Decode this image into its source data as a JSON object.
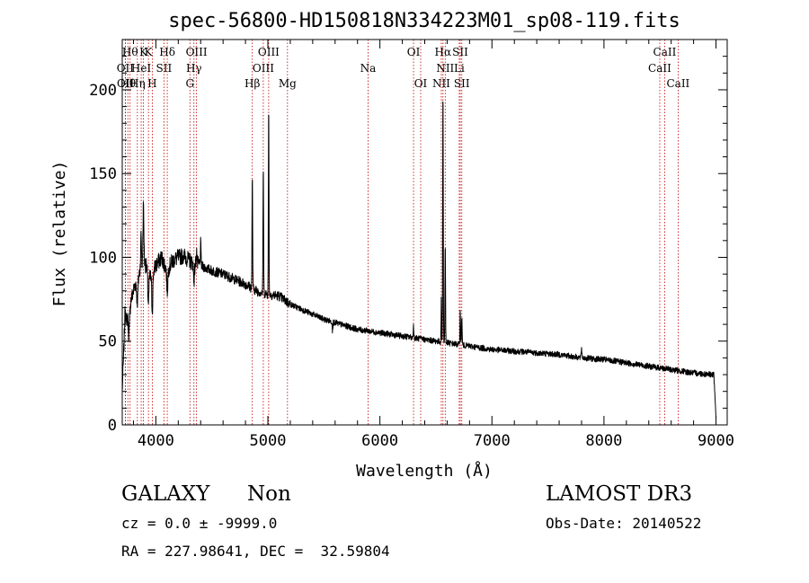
{
  "chart_data": {
    "type": "line",
    "title": "spec-56800-HD150818N334223M01_sp08-119.fits",
    "xlabel": "Wavelength (Å)",
    "ylabel": "Flux (relative)",
    "xlim": [
      3700,
      9100
    ],
    "ylim": [
      0,
      230
    ],
    "xticks": [
      4000,
      5000,
      6000,
      7000,
      8000,
      9000
    ],
    "yticks": [
      0,
      50,
      100,
      150,
      200
    ],
    "grid": false,
    "series": [
      {
        "name": "spectrum",
        "continuum": [
          [
            3700,
            20
          ],
          [
            3720,
            55
          ],
          [
            3745,
            65
          ],
          [
            3780,
            75
          ],
          [
            3820,
            85
          ],
          [
            3860,
            92
          ],
          [
            3900,
            97
          ],
          [
            3950,
            88
          ],
          [
            4000,
            95
          ],
          [
            4050,
            100
          ],
          [
            4100,
            92
          ],
          [
            4150,
            98
          ],
          [
            4200,
            100
          ],
          [
            4250,
            101
          ],
          [
            4300,
            98
          ],
          [
            4400,
            95
          ],
          [
            4500,
            92
          ],
          [
            4600,
            90
          ],
          [
            4700,
            87
          ],
          [
            4800,
            84
          ],
          [
            4900,
            80
          ],
          [
            5000,
            78
          ],
          [
            5100,
            77
          ],
          [
            5200,
            72
          ],
          [
            5300,
            69
          ],
          [
            5400,
            66
          ],
          [
            5500,
            63
          ],
          [
            5600,
            61
          ],
          [
            5700,
            59
          ],
          [
            5800,
            57
          ],
          [
            5900,
            56
          ],
          [
            6000,
            55
          ],
          [
            6100,
            54
          ],
          [
            6200,
            53
          ],
          [
            6300,
            52
          ],
          [
            6400,
            51
          ],
          [
            6500,
            50
          ],
          [
            6600,
            49
          ],
          [
            6700,
            48
          ],
          [
            6800,
            47
          ],
          [
            6900,
            46
          ],
          [
            7000,
            45
          ],
          [
            7200,
            44
          ],
          [
            7400,
            43
          ],
          [
            7600,
            42
          ],
          [
            7800,
            40
          ],
          [
            8000,
            39
          ],
          [
            8200,
            37
          ],
          [
            8400,
            35
          ],
          [
            8600,
            33
          ],
          [
            8800,
            31
          ],
          [
            8980,
            30
          ],
          [
            9000,
            5
          ]
        ],
        "features": [
          {
            "center": 3727,
            "width": 4,
            "amp": 12
          },
          {
            "center": 3760,
            "width": 6,
            "amp": -15
          },
          {
            "center": 3835,
            "width": 6,
            "amp": -14
          },
          {
            "center": 3868,
            "width": 4,
            "amp": 20
          },
          {
            "center": 3889,
            "width": 4,
            "amp": 35
          },
          {
            "center": 3933,
            "width": 5,
            "amp": -18
          },
          {
            "center": 3968,
            "width": 5,
            "amp": -22
          },
          {
            "center": 4102,
            "width": 5,
            "amp": -12
          },
          {
            "center": 4340,
            "width": 5,
            "amp": -10
          },
          {
            "center": 4363,
            "width": 3,
            "amp": 8
          },
          {
            "center": 4400,
            "width": 3,
            "amp": 14
          },
          {
            "center": 4861,
            "width": 2.5,
            "amp": 70
          },
          {
            "center": 4959,
            "width": 2.5,
            "amp": 78
          },
          {
            "center": 5007,
            "width": 2.5,
            "amp": 114
          },
          {
            "center": 5577,
            "width": 2,
            "amp": -12
          },
          {
            "center": 5577.5,
            "width": 1.2,
            "amp": 12
          },
          {
            "center": 6300,
            "width": 2.5,
            "amp": 8
          },
          {
            "center": 6548,
            "width": 2,
            "amp": 25
          },
          {
            "center": 6563,
            "width": 2.5,
            "amp": 155
          },
          {
            "center": 6583,
            "width": 2.5,
            "amp": 60
          },
          {
            "center": 6717,
            "width": 2.5,
            "amp": 22
          },
          {
            "center": 6731,
            "width": 2.5,
            "amp": 18
          },
          {
            "center": 7800,
            "width": 3,
            "amp": 6
          }
        ]
      }
    ],
    "line_markers": [
      {
        "wavelength": 3727,
        "label": "OII",
        "row": 2
      },
      {
        "wavelength": 3729,
        "label": "OII",
        "row": 4
      },
      {
        "wavelength": 3750,
        "label": "Hθ",
        "row": 4
      },
      {
        "wavelength": 3770,
        "label": "Hθ",
        "row": 1
      },
      {
        "wavelength": 3835,
        "label": "Hη",
        "row": 3
      },
      {
        "wavelength": 3869,
        "label": "HeI",
        "row": 2
      },
      {
        "wavelength": 3889,
        "label": "K",
        "row": 1
      },
      {
        "wavelength": 3934,
        "label": "K",
        "row": 1
      },
      {
        "wavelength": 3968,
        "label": "H",
        "row": 3
      },
      {
        "wavelength": 4072,
        "label": "SII",
        "row": 2
      },
      {
        "wavelength": 4102,
        "label": "Hδ",
        "row": 1
      },
      {
        "wavelength": 4304,
        "label": "G",
        "row": 3
      },
      {
        "wavelength": 4340,
        "label": "Hγ",
        "row": 2
      },
      {
        "wavelength": 4363,
        "label": "OIII",
        "row": 1
      },
      {
        "wavelength": 4861,
        "label": "Hβ",
        "row": 3
      },
      {
        "wavelength": 4959,
        "label": "OIII",
        "row": 2
      },
      {
        "wavelength": 5007,
        "label": "OIII",
        "row": 1
      },
      {
        "wavelength": 5175,
        "label": "Mg",
        "row": 3
      },
      {
        "wavelength": 5894,
        "label": "Na",
        "row": 2
      },
      {
        "wavelength": 6300,
        "label": "OI",
        "row": 1
      },
      {
        "wavelength": 6364,
        "label": "OI",
        "row": 3
      },
      {
        "wavelength": 6548,
        "label": "NII",
        "row": 3
      },
      {
        "wavelength": 6563,
        "label": "Hα",
        "row": 1
      },
      {
        "wavelength": 6583,
        "label": "NII",
        "row": 2
      },
      {
        "wavelength": 6708,
        "label": "Li",
        "row": 2
      },
      {
        "wavelength": 6717,
        "label": "SII",
        "row": 1
      },
      {
        "wavelength": 6731,
        "label": "SII",
        "row": 3
      },
      {
        "wavelength": 8498,
        "label": "CaII",
        "row": 2
      },
      {
        "wavelength": 8542,
        "label": "CaII",
        "row": 1
      },
      {
        "wavelength": 8662,
        "label": "CaII",
        "row": 3
      }
    ]
  },
  "info": {
    "class_label": "GALAXY",
    "subclass_label": "Non",
    "survey_label": "LAMOST DR3",
    "cz_text": "cz = 0.0 ± -9999.0",
    "obs_date_text": "Obs-Date: 20140522",
    "radec_text": "RA = 227.98641, DEC =  32.59804"
  },
  "colors": {
    "spectrum": "#000000",
    "marker": "#c00000",
    "axis": "#000000"
  }
}
